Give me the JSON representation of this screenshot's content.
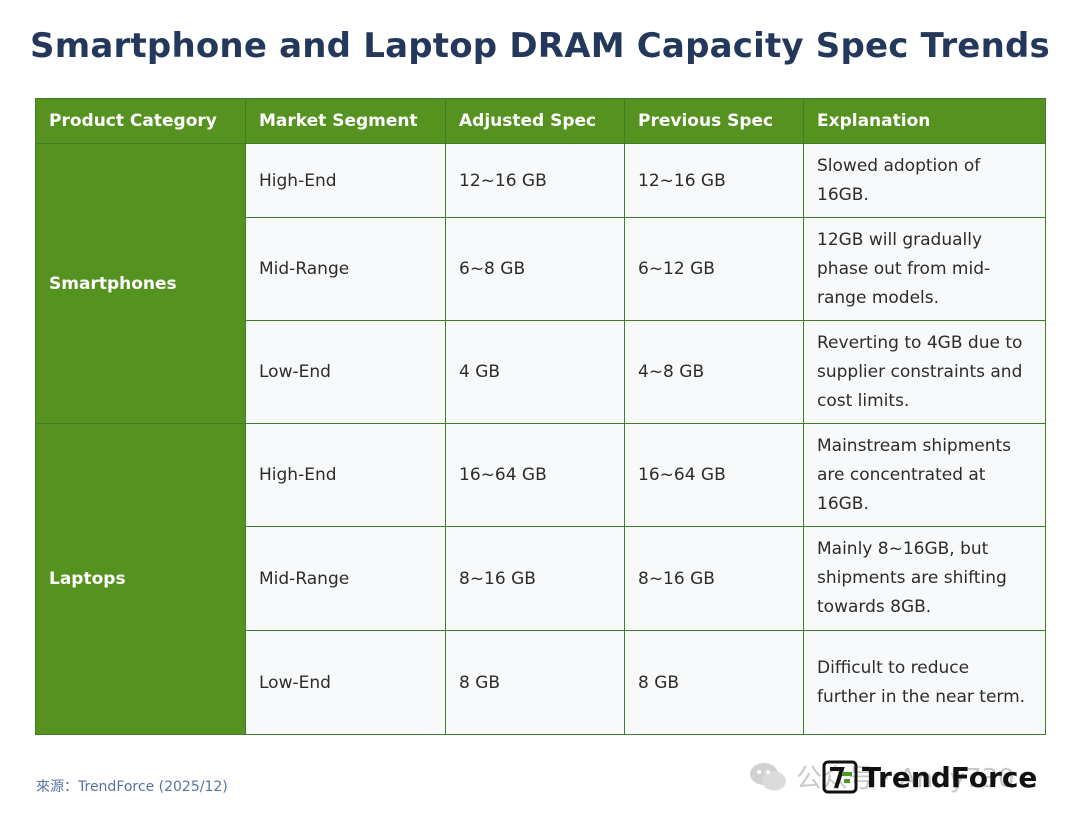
{
  "title": "Smartphone and Laptop DRAM Capacity Spec Trends",
  "colors": {
    "header_green": "#55921f",
    "title_navy": "#24385b",
    "cell_bg": "#f7f9fa",
    "source_blue": "#5a72a0"
  },
  "chart_data": {
    "type": "table",
    "title": "Smartphone and Laptop DRAM Capacity Spec Trends",
    "columns": [
      "Product Category",
      "Market Segment",
      "Adjusted Spec",
      "Previous Spec",
      "Explanation"
    ],
    "groups": [
      {
        "category": "Smartphones",
        "rows": [
          {
            "segment": "High-End",
            "adjusted": "12~16 GB",
            "previous": "12~16 GB",
            "explanation": "Slowed adoption of 16GB."
          },
          {
            "segment": "Mid-Range",
            "adjusted": "6~8 GB",
            "previous": "6~12 GB",
            "explanation": "12GB will gradually phase out from mid-range models."
          },
          {
            "segment": "Low-End",
            "adjusted": "4 GB",
            "previous": "4~8 GB",
            "explanation": "Reverting to 4GB due to supplier constraints and cost limits."
          }
        ]
      },
      {
        "category": "Laptops",
        "rows": [
          {
            "segment": "High-End",
            "adjusted": "16~64 GB",
            "previous": "16~64 GB",
            "explanation": "Mainstream shipments are concentrated at 16GB."
          },
          {
            "segment": "Mid-Range",
            "adjusted": "8~16 GB",
            "previous": "8~16 GB",
            "explanation": "Mainly 8~16GB, but shipments are shifting towards 8GB."
          },
          {
            "segment": "Low-End",
            "adjusted": "8 GB",
            "previous": "8 GB",
            "explanation": "Difficult to reduce further in the near term."
          }
        ]
      }
    ]
  },
  "footer": {
    "source": "來源：TrendForce (2025/12)",
    "brand": "TrendForce",
    "brand_logo_icon": "trendforce-logo-icon",
    "wechat_icon": "wechat-icon",
    "wechat_text": "公众号 · Andy730"
  },
  "watermark": {
    "text": "TrendForce"
  }
}
